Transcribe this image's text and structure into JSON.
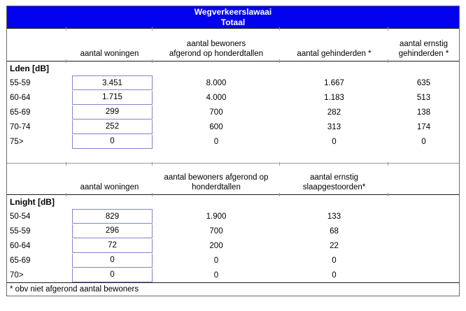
{
  "title": {
    "line1": "Wegverkeerslawaai",
    "line2": "Totaal"
  },
  "colors": {
    "banner_bg": "#0202ee",
    "banner_text": "#ffffff",
    "value_box_border": "#8484cc",
    "table_border": "#6b6b6b"
  },
  "sections": [
    {
      "group_label": "Lden [dB]",
      "headers": {
        "col1": "aantal woningen",
        "col2": "aantal bewoners\nafgerond op honderdtallen",
        "col3": "aantal gehinderden *",
        "col4": "aantal ernstig\ngehinderden *"
      },
      "rows": [
        {
          "label": "55-59",
          "woningen": "3.451",
          "bewoners": "8.000",
          "col3": "1.667",
          "col4": "635"
        },
        {
          "label": "60-64",
          "woningen": "1.715",
          "bewoners": "4.000",
          "col3": "1.183",
          "col4": "513"
        },
        {
          "label": "65-69",
          "woningen": "299",
          "bewoners": "700",
          "col3": "282",
          "col4": "138"
        },
        {
          "label": "70-74",
          "woningen": "252",
          "bewoners": "600",
          "col3": "313",
          "col4": "174"
        },
        {
          "label": "75>",
          "woningen": "0",
          "bewoners": "0",
          "col3": "0",
          "col4": "0"
        }
      ]
    },
    {
      "group_label": "Lnight [dB]",
      "headers": {
        "col1": "aantal woningen",
        "col2": "aantal bewoners afgerond op\nhonderdtallen",
        "col3": "aantal ernstig\nslaapgestoorden*",
        "col4": ""
      },
      "rows": [
        {
          "label": "50-54",
          "woningen": "829",
          "bewoners": "1.900",
          "col3": "133",
          "col4": ""
        },
        {
          "label": "55-59",
          "woningen": "296",
          "bewoners": "700",
          "col3": "68",
          "col4": ""
        },
        {
          "label": "60-64",
          "woningen": "72",
          "bewoners": "200",
          "col3": "22",
          "col4": ""
        },
        {
          "label": "65-69",
          "woningen": "0",
          "bewoners": "0",
          "col3": "0",
          "col4": ""
        },
        {
          "label": "70>",
          "woningen": "0",
          "bewoners": "0",
          "col3": "0",
          "col4": ""
        }
      ]
    }
  ],
  "footnote": "* obv niet afgerond aantal bewoners"
}
